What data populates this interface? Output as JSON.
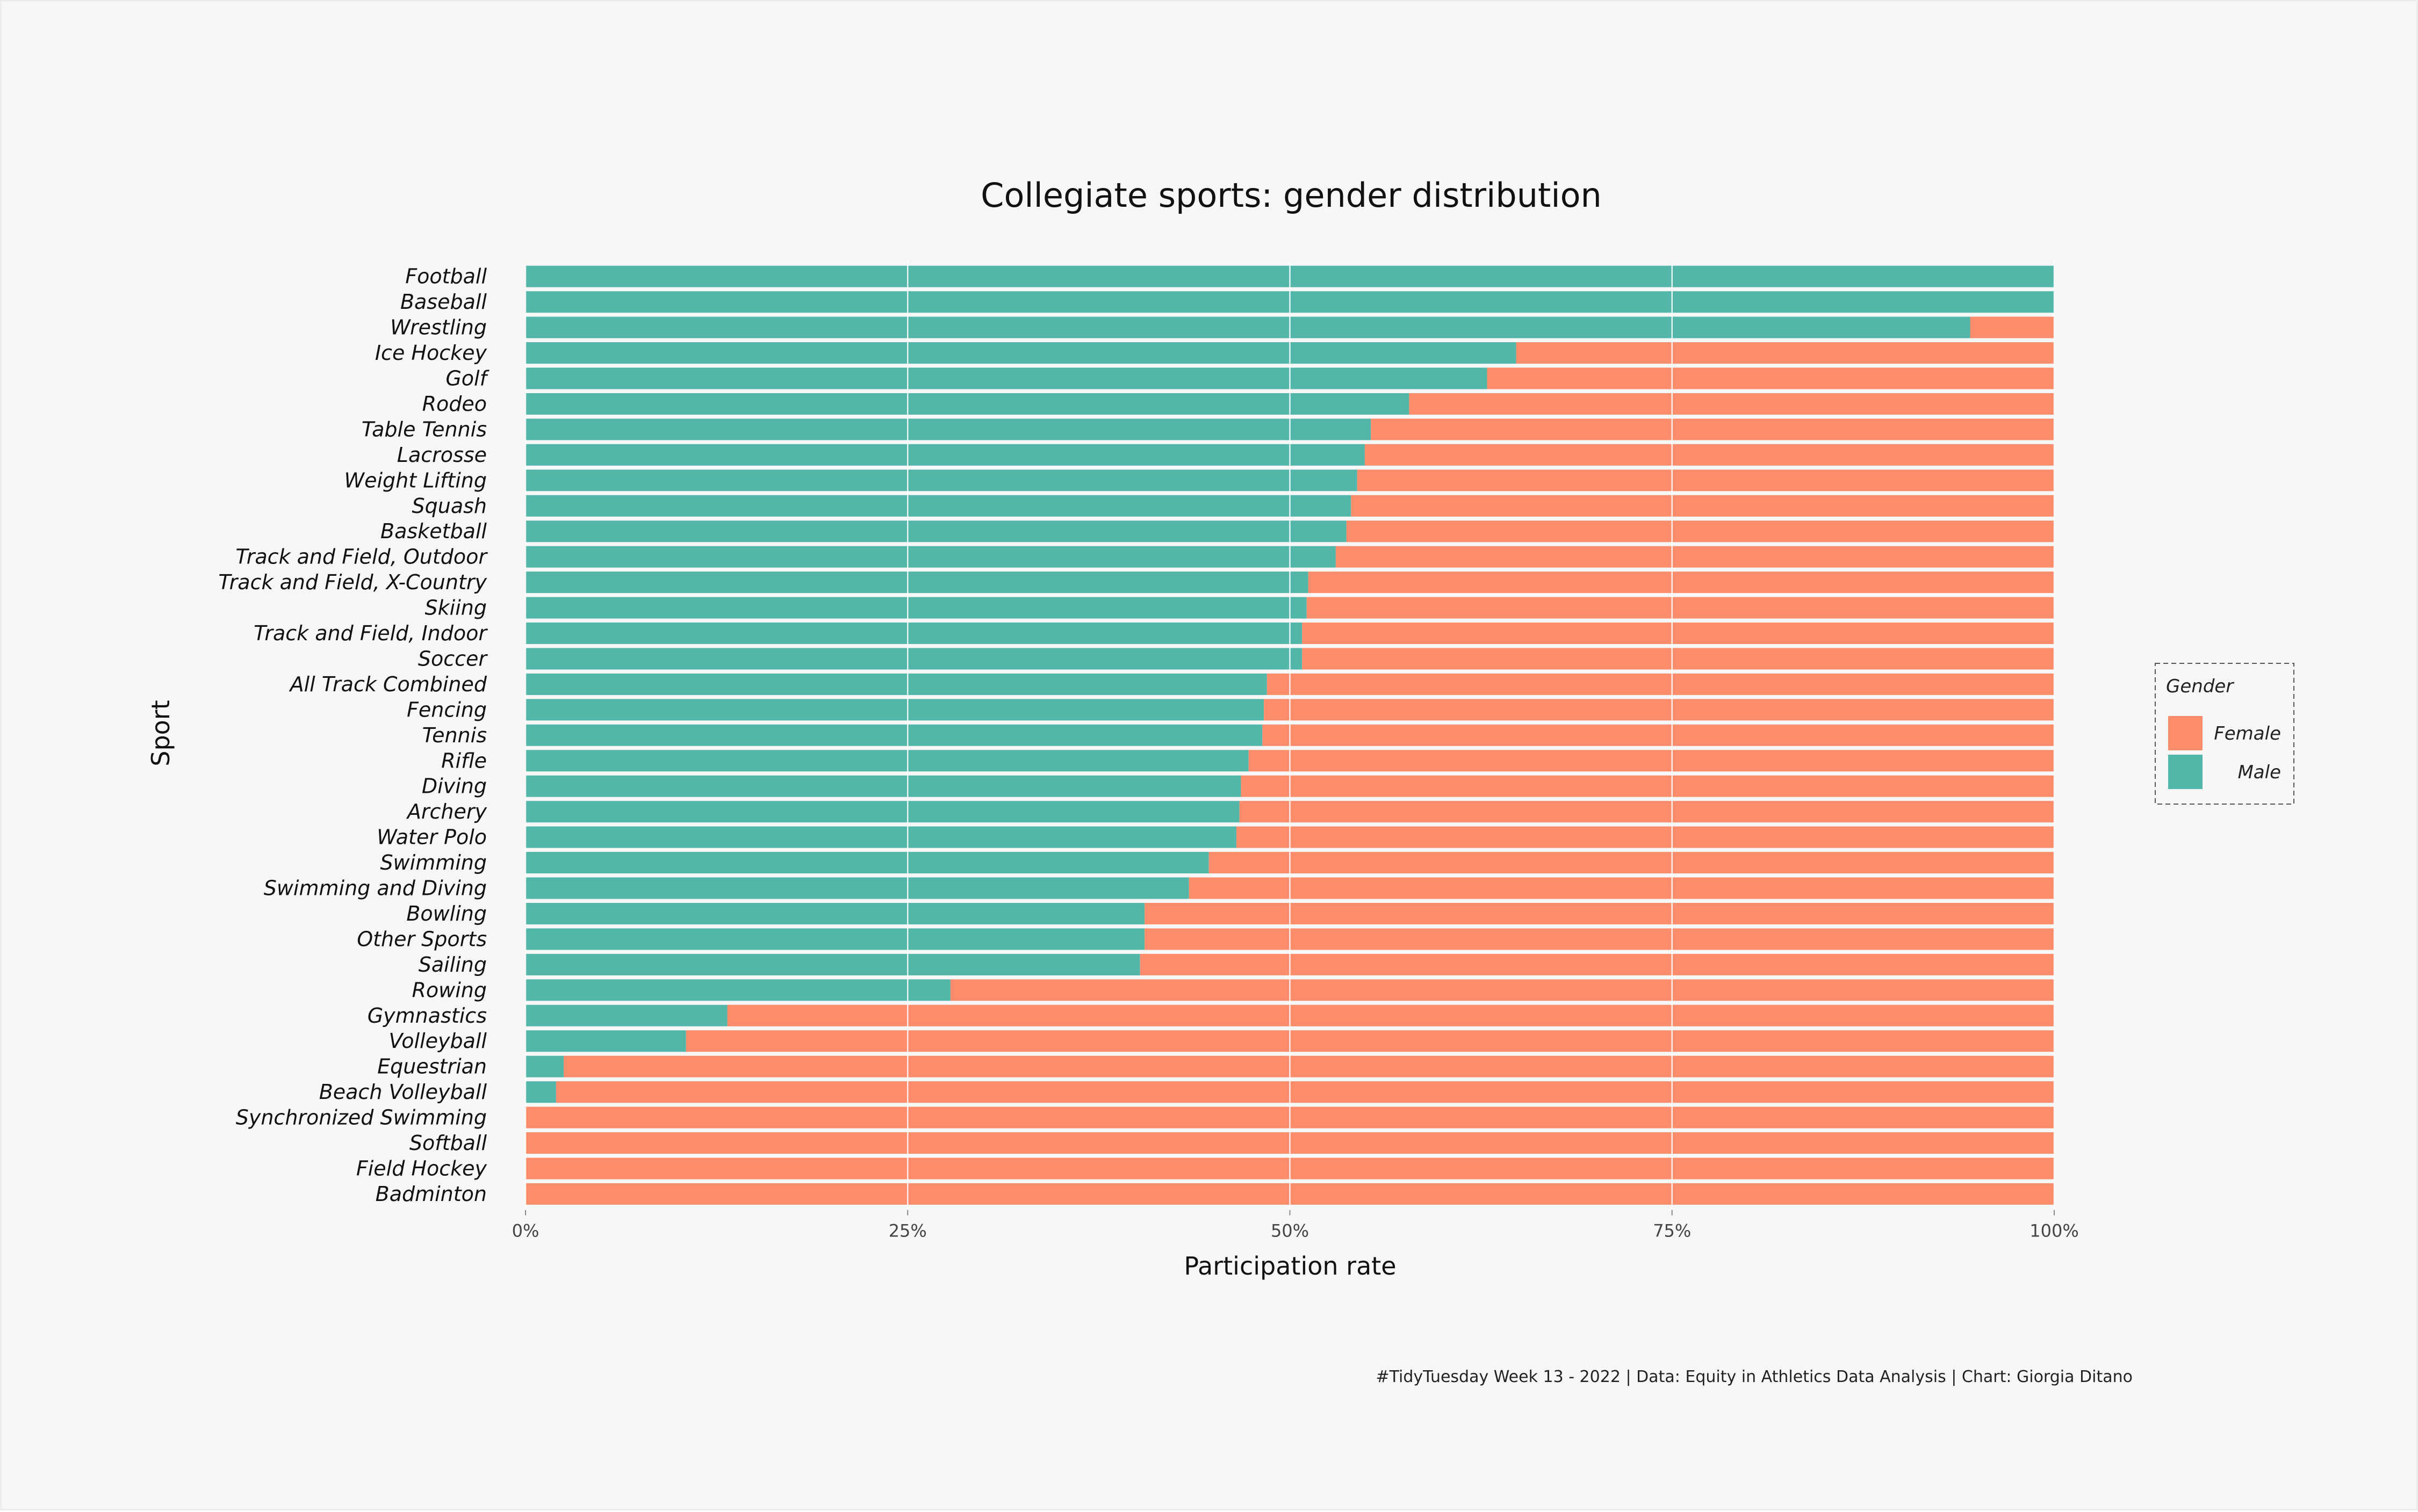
{
  "chart_data": {
    "type": "bar",
    "orientation": "horizontal",
    "stacked": true,
    "title": "Collegiate sports: gender distribution",
    "xlabel": "Participation rate",
    "ylabel": "Sport",
    "xlim": [
      0,
      1
    ],
    "xticks": [
      0,
      0.25,
      0.5,
      0.75,
      1.0
    ],
    "xtick_labels": [
      "0%",
      "25%",
      "50%",
      "75%",
      "100%"
    ],
    "grid": "vertical lines at major ticks",
    "legend_title": "Gender",
    "legend_position": "right",
    "categories": [
      "Football",
      "Baseball",
      "Wrestling",
      "Ice Hockey",
      "Golf",
      "Rodeo",
      "Table Tennis",
      "Lacrosse",
      "Weight Lifting",
      "Squash",
      "Basketball",
      "Track and Field, Outdoor",
      "Track and Field, X-Country",
      "Skiing",
      "Track and Field, Indoor",
      "Soccer",
      "All Track Combined",
      "Fencing",
      "Tennis",
      "Rifle",
      "Diving",
      "Archery",
      "Water Polo",
      "Swimming",
      "Swimming and Diving",
      "Bowling",
      "Other Sports",
      "Sailing",
      "Rowing",
      "Gymnastics",
      "Volleyball",
      "Equestrian",
      "Beach Volleyball",
      "Synchronized Swimming",
      "Softball",
      "Field Hockey",
      "Badminton"
    ],
    "series": [
      {
        "name": "Male",
        "color": "#52b6a9",
        "values": [
          1.0,
          1.0,
          0.945,
          0.648,
          0.629,
          0.578,
          0.553,
          0.549,
          0.544,
          0.54,
          0.537,
          0.53,
          0.512,
          0.511,
          0.508,
          0.508,
          0.485,
          0.483,
          0.482,
          0.473,
          0.468,
          0.467,
          0.465,
          0.447,
          0.434,
          0.405,
          0.405,
          0.402,
          0.278,
          0.132,
          0.105,
          0.025,
          0.02,
          0.0,
          0.0,
          0.0,
          0.0
        ]
      },
      {
        "name": "Female",
        "color": "#fc8d6c",
        "values": [
          0.0,
          0.0,
          0.055,
          0.352,
          0.371,
          0.422,
          0.447,
          0.451,
          0.456,
          0.46,
          0.463,
          0.47,
          0.488,
          0.489,
          0.492,
          0.492,
          0.515,
          0.517,
          0.518,
          0.527,
          0.532,
          0.533,
          0.535,
          0.553,
          0.566,
          0.595,
          0.595,
          0.598,
          0.722,
          0.868,
          0.895,
          0.975,
          0.98,
          1.0,
          1.0,
          1.0,
          1.0
        ]
      }
    ],
    "legend_order": [
      "Female",
      "Male"
    ],
    "caption": "#TidyTuesday Week 13 - 2022 | Data: Equity in Athletics Data Analysis | Chart: Giorgia Ditano"
  }
}
